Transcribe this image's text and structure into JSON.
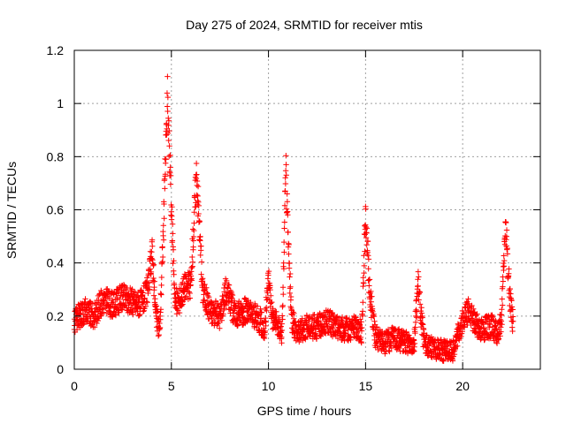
{
  "chart_data": {
    "type": "scatter",
    "title": "Day 275 of 2024, SRMTID for receiver mtis",
    "xlabel": "GPS time / hours",
    "ylabel": "SRMTID / TECUs",
    "xlim": [
      0,
      24
    ],
    "ylim": [
      0,
      1.2
    ],
    "xticks": [
      0,
      5,
      10,
      15,
      20
    ],
    "xtick_labels": [
      "0",
      "5",
      "10",
      "15",
      "20"
    ],
    "yticks": [
      0,
      0.2,
      0.4,
      0.6,
      0.8,
      1.0,
      1.2
    ],
    "ytick_labels": [
      "0",
      "0.2",
      "0.4",
      "0.6",
      "0.8",
      "1",
      "1.2"
    ],
    "grid": true,
    "marker": "+",
    "color": "#ff0000",
    "sample_interval_hours": 0.01,
    "series": [
      {
        "name": "SRMTID",
        "x_start": 0.0,
        "x_end": 22.6,
        "profile_hours": [
          0.0,
          0.5,
          1.0,
          1.5,
          2.0,
          2.5,
          3.0,
          3.5,
          3.8,
          4.0,
          4.2,
          4.4,
          4.6,
          4.8,
          5.0,
          5.2,
          5.4,
          5.6,
          6.0,
          6.3,
          6.6,
          7.0,
          7.5,
          7.8,
          8.3,
          8.8,
          9.3,
          9.6,
          9.8,
          10.0,
          10.2,
          10.5,
          10.7,
          10.9,
          11.0,
          11.2,
          11.5,
          12.0,
          12.5,
          13.0,
          13.5,
          14.0,
          14.5,
          14.8,
          15.0,
          15.2,
          15.5,
          16.0,
          16.5,
          17.0,
          17.5,
          17.7,
          18.0,
          18.5,
          19.0,
          19.5,
          20.0,
          20.3,
          20.7,
          21.0,
          21.5,
          21.8,
          22.0,
          22.2,
          22.4,
          22.6
        ],
        "profile_values": [
          0.18,
          0.22,
          0.2,
          0.26,
          0.24,
          0.27,
          0.25,
          0.25,
          0.3,
          0.45,
          0.2,
          0.15,
          0.55,
          1.02,
          0.6,
          0.25,
          0.26,
          0.3,
          0.32,
          0.75,
          0.3,
          0.22,
          0.2,
          0.3,
          0.2,
          0.22,
          0.2,
          0.18,
          0.14,
          0.35,
          0.2,
          0.16,
          0.14,
          0.75,
          0.5,
          0.18,
          0.14,
          0.16,
          0.16,
          0.18,
          0.16,
          0.15,
          0.16,
          0.14,
          0.6,
          0.3,
          0.12,
          0.1,
          0.12,
          0.1,
          0.1,
          0.32,
          0.1,
          0.08,
          0.07,
          0.07,
          0.18,
          0.22,
          0.17,
          0.15,
          0.16,
          0.13,
          0.18,
          0.55,
          0.3,
          0.17
        ],
        "scatter_range": [
          0.0,
          0.06
        ]
      }
    ]
  }
}
